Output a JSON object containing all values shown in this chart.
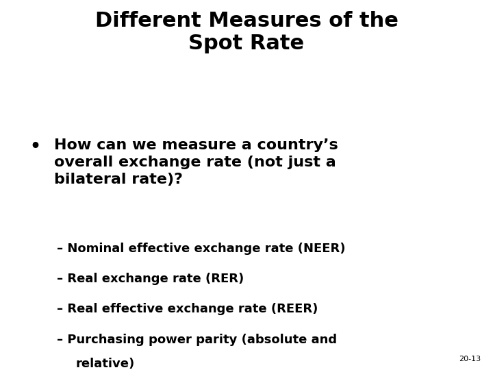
{
  "title_line1": "Different Measures of the",
  "title_line2": "Spot Rate",
  "bullet_line1": "How can we measure a country’s",
  "bullet_line2": "overall exchange rate (not just a",
  "bullet_line3": "bilateral rate)?",
  "sub_bullets": [
    "Nominal effective exchange rate (NEER)",
    "Real exchange rate (RER)",
    "Real effective exchange rate (REER)",
    "Purchasing power parity (absolute and"
  ],
  "sub_bullet_last_continuation": "   relative)",
  "footnote": "20-13",
  "bg_color": "#ffffff",
  "text_color": "#000000",
  "title_fontsize": 22,
  "bullet_fontsize": 16,
  "sub_bullet_fontsize": 13,
  "footnote_fontsize": 8
}
